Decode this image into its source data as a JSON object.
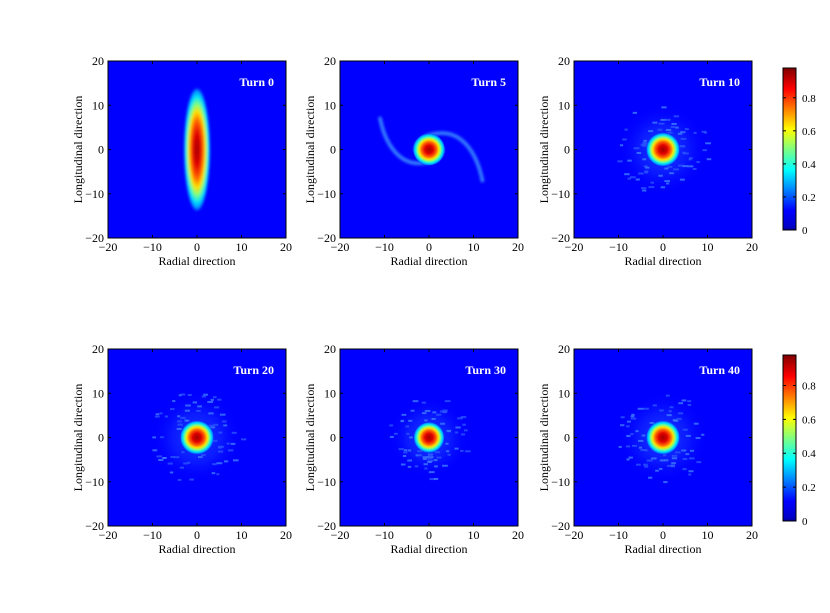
{
  "chart_data": {
    "type": "heatmap",
    "shared": {
      "xlabel": "Radial direction",
      "ylabel": "Longitudinal direction",
      "xlim": [
        -20,
        20
      ],
      "ylim": [
        -20,
        20
      ],
      "xticks": [
        -20,
        -10,
        0,
        10,
        20
      ],
      "yticks": [
        -20,
        -10,
        0,
        10,
        20
      ],
      "colormap": "jet",
      "clim": [
        0,
        1
      ]
    },
    "panels": [
      {
        "title": "Turn 0",
        "shape": "ellipse",
        "sigma_x": 1.6,
        "sigma_y": 9.5,
        "peak": 0.95
      },
      {
        "title": "Turn 5",
        "shape": "spiral",
        "core_radius": 3.5,
        "arm_extent": 12,
        "peak": 0.95
      },
      {
        "title": "Turn 10",
        "shape": "core_halo",
        "core_radius": 3.5,
        "halo_radius": 10,
        "peak": 0.95
      },
      {
        "title": "Turn 20",
        "shape": "core_halo",
        "core_radius": 3.5,
        "halo_radius": 10,
        "peak": 0.95
      },
      {
        "title": "Turn 30",
        "shape": "core_halo",
        "core_radius": 3.2,
        "halo_radius": 9,
        "peak": 0.9
      },
      {
        "title": "Turn 40",
        "shape": "core_halo",
        "core_radius": 3.5,
        "halo_radius": 10,
        "peak": 0.95
      }
    ],
    "colorbars": [
      {
        "ticks": [
          "0",
          "0.2",
          "0.4",
          "0.6",
          "0.8"
        ]
      },
      {
        "ticks": [
          "0",
          "0.2",
          "0.4",
          "0.6",
          "0.8"
        ]
      }
    ]
  },
  "colors": {
    "background": "#0000ff",
    "accent_high": "#800000"
  }
}
